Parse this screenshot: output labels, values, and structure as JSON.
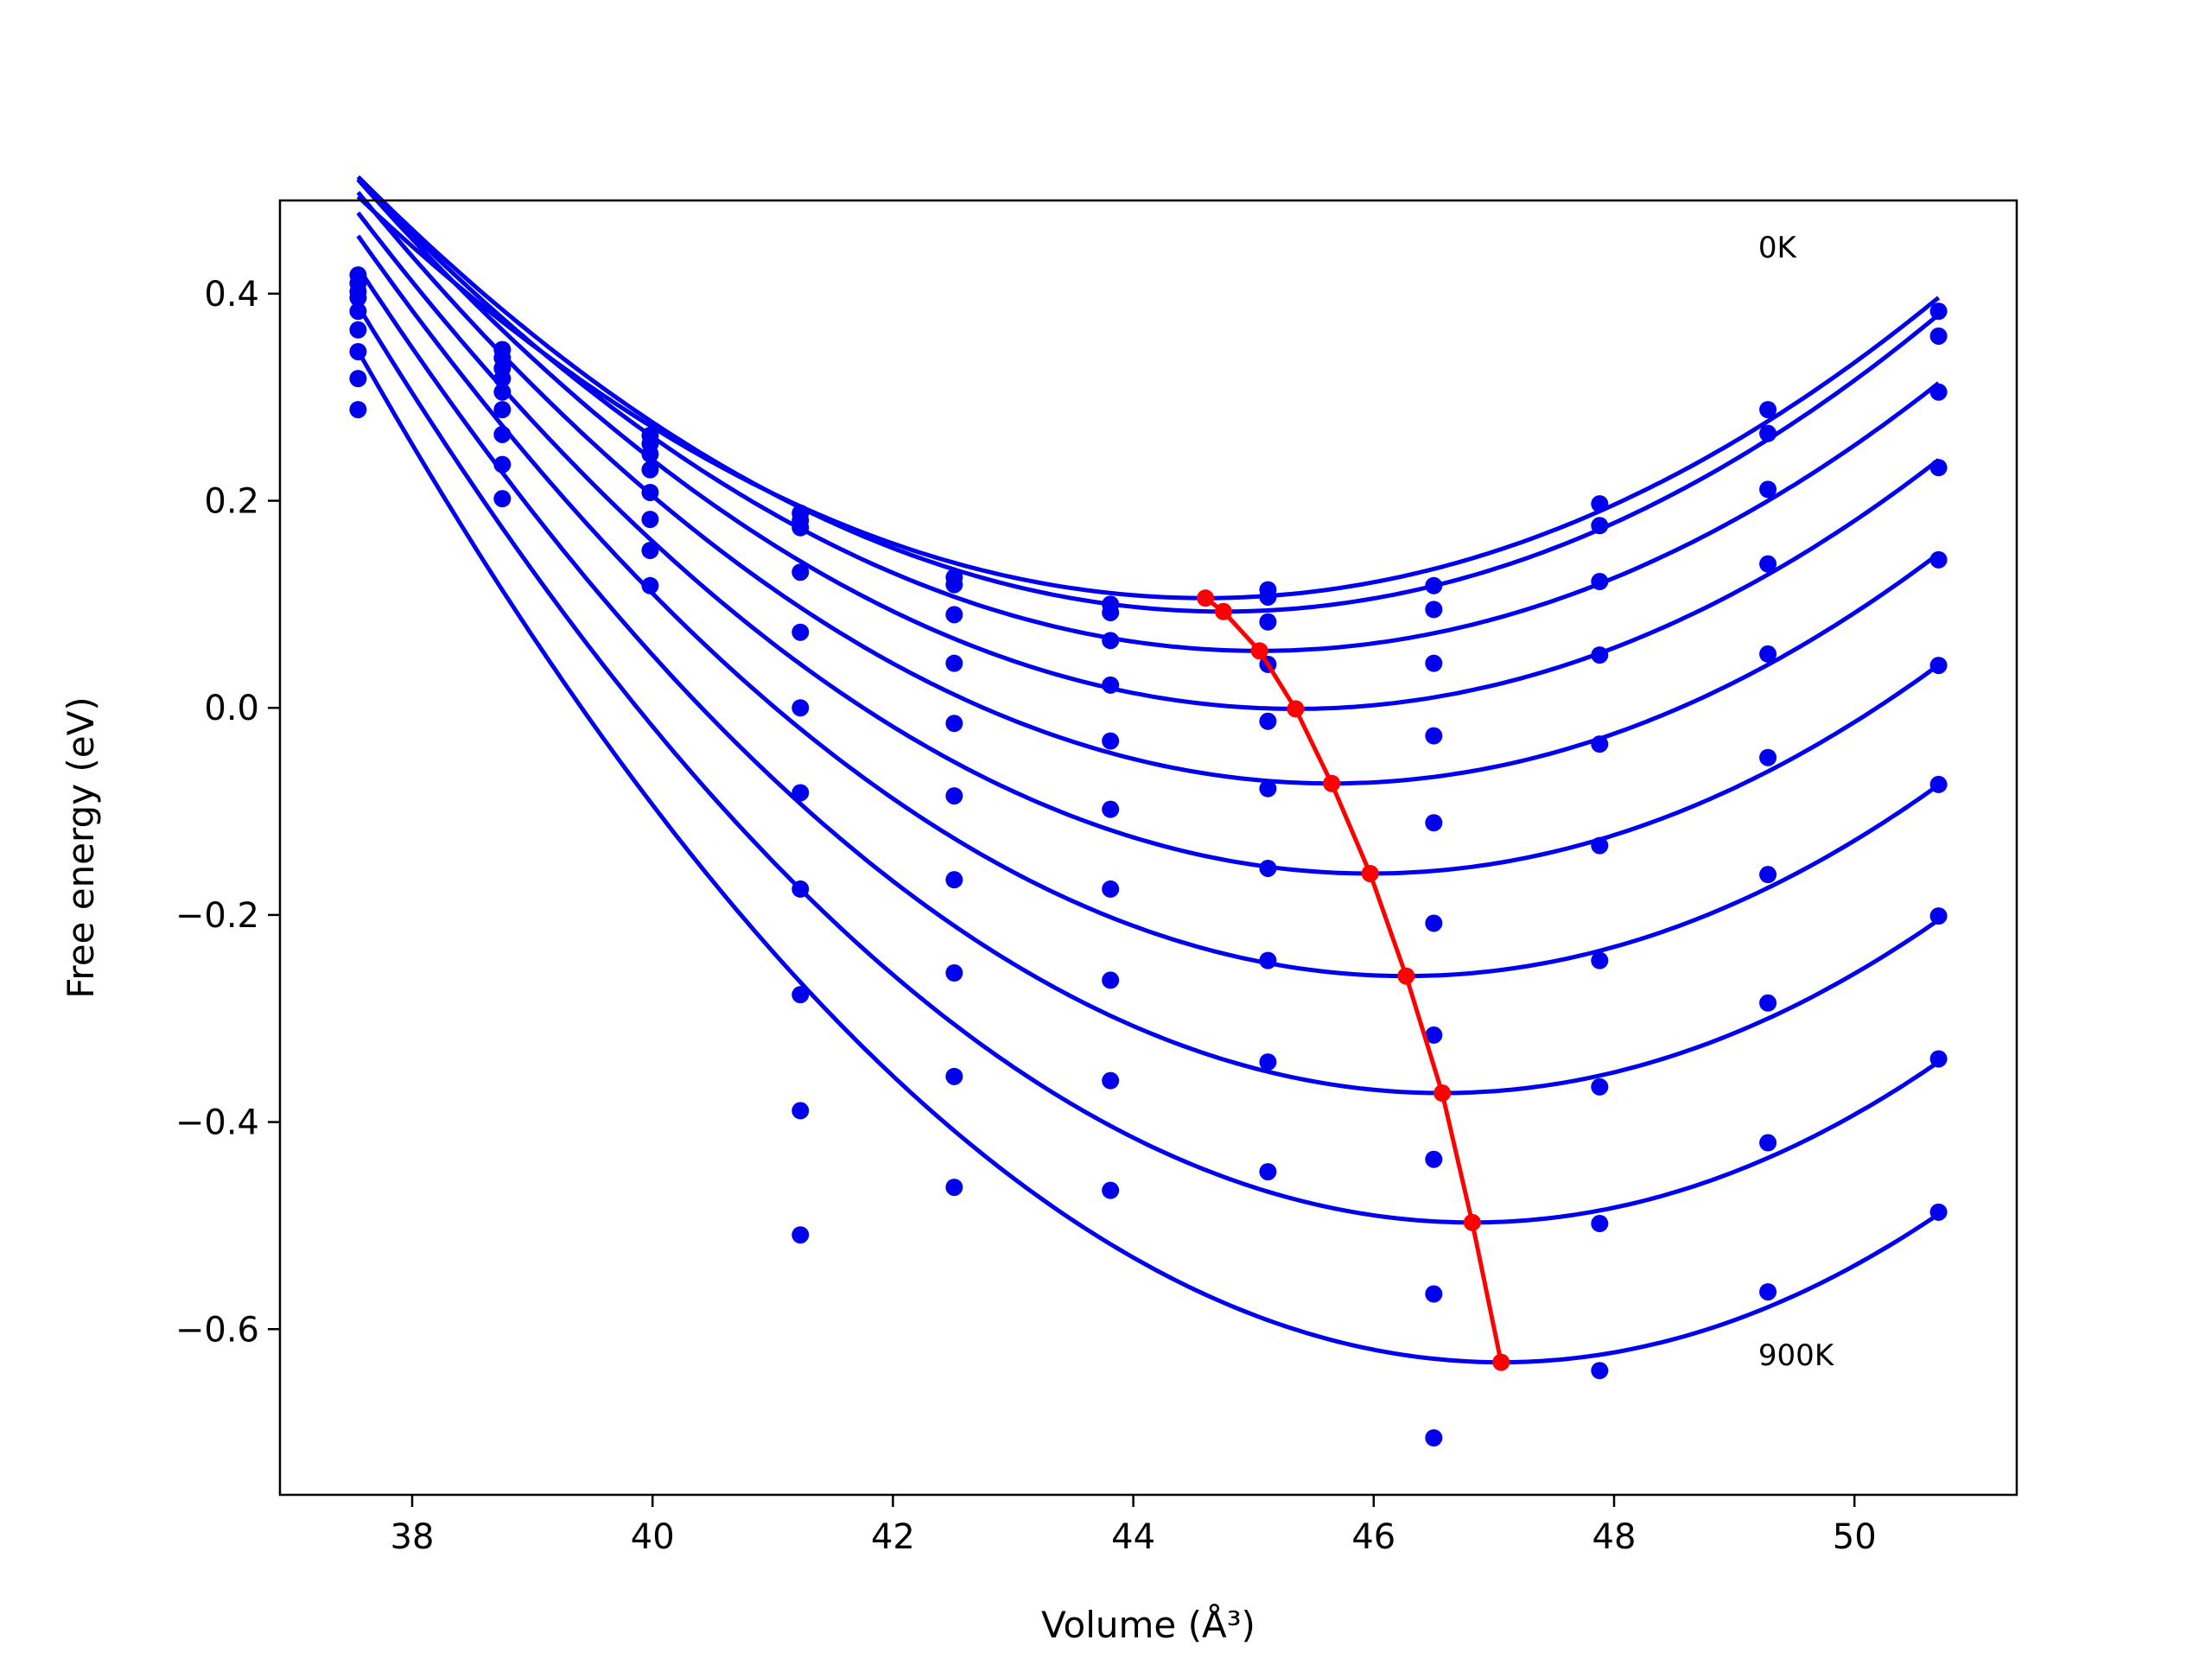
{
  "chart_data": {
    "type": "scatter",
    "title": "",
    "xlabel": "Volume (Å³)",
    "ylabel": "Free energy (eV)",
    "xlim": [
      36.9,
      51.35
    ],
    "ylim": [
      -0.76,
      0.49
    ],
    "xticks": [
      38,
      40,
      42,
      44,
      46,
      48,
      50
    ],
    "yticks": [
      0.4,
      0.2,
      0.0,
      -0.2,
      -0.4,
      -0.6
    ],
    "ytick_labels": [
      "0.4",
      "0.2",
      "0.0",
      "−0.2",
      "−0.4",
      "−0.6"
    ],
    "grid": false,
    "annotations": [
      {
        "text": "0K",
        "x": 49.2,
        "y": 0.435
      },
      {
        "text": "900K",
        "x": 49.2,
        "y": -0.635
      }
    ],
    "colors": {
      "points": "#0000ee",
      "fits": "#0000ee",
      "minima": "#ff0000"
    },
    "volumes": [
      37.55,
      38.75,
      39.98,
      41.23,
      42.51,
      43.81,
      45.12,
      46.5,
      47.88,
      49.28,
      50.7
    ],
    "points": [
      {
        "x": 37.55,
        "y": [
          0.418,
          0.41,
          0.402,
          0.396,
          0.383,
          0.365,
          0.344,
          0.318,
          0.288
        ]
      },
      {
        "x": 38.75,
        "y": [
          0.346,
          0.338,
          0.328,
          0.318,
          0.305,
          0.288,
          0.264,
          0.235,
          0.202
        ]
      },
      {
        "x": 39.98,
        "y": [
          0.263,
          0.255,
          0.245,
          0.23,
          0.208,
          0.182,
          0.152,
          0.118
        ]
      },
      {
        "x": 41.23,
        "y": [
          0.188,
          0.181,
          0.174,
          0.131,
          0.073,
          0.0,
          -0.082,
          -0.175,
          -0.277,
          -0.389,
          -0.509
        ]
      },
      {
        "x": 42.51,
        "y": [
          0.126,
          0.119,
          0.09,
          0.043,
          -0.015,
          -0.085,
          -0.166,
          -0.256,
          -0.356,
          -0.463
        ]
      },
      {
        "x": 43.81,
        "y": [
          0.1,
          0.092,
          0.065,
          0.022,
          -0.032,
          -0.098,
          -0.175,
          -0.263,
          -0.36,
          -0.466
        ]
      },
      {
        "x": 45.12,
        "y": [
          0.114,
          0.107,
          0.083,
          0.042,
          -0.013,
          -0.078,
          -0.155,
          -0.244,
          -0.342,
          -0.448
        ]
      },
      {
        "x": 46.5,
        "y": [
          0.118,
          0.095,
          0.043,
          -0.027,
          -0.111,
          -0.208,
          -0.316,
          -0.436,
          -0.566,
          -0.705
        ]
      },
      {
        "x": 47.88,
        "y": [
          0.197,
          0.176,
          0.122,
          0.051,
          -0.035,
          -0.133,
          -0.244,
          -0.366,
          -0.498,
          -0.64
        ]
      },
      {
        "x": 49.28,
        "y": [
          0.288,
          0.265,
          0.211,
          0.139,
          0.052,
          -0.048,
          -0.161,
          -0.285,
          -0.42,
          -0.564
        ]
      },
      {
        "x": 50.7,
        "y": [
          0.383,
          0.359,
          0.305,
          0.232,
          0.143,
          0.041,
          -0.074,
          -0.201,
          -0.339,
          -0.487
        ]
      }
    ],
    "fits": [
      {
        "min_x": 44.6,
        "min_y": 0.106,
        "curvature": 0.0078
      },
      {
        "min_x": 44.75,
        "min_y": 0.093,
        "curvature": 0.0081
      },
      {
        "min_x": 45.05,
        "min_y": 0.055,
        "curvature": 0.0081
      },
      {
        "min_x": 45.35,
        "min_y": -0.001,
        "curvature": 0.0084
      },
      {
        "min_x": 45.65,
        "min_y": -0.073,
        "curvature": 0.0087
      },
      {
        "min_x": 45.97,
        "min_y": -0.16,
        "curvature": 0.009
      },
      {
        "min_x": 46.27,
        "min_y": -0.259,
        "curvature": 0.0094
      },
      {
        "min_x": 46.57,
        "min_y": -0.372,
        "curvature": 0.0098
      },
      {
        "min_x": 46.82,
        "min_y": -0.497,
        "curvature": 0.0103
      },
      {
        "min_x": 47.06,
        "min_y": -0.632,
        "curvature": 0.0108
      }
    ],
    "fit_x_range": [
      37.55,
      50.7
    ],
    "minima_line": {
      "x": [
        44.6,
        44.75,
        45.05,
        45.35,
        45.65,
        45.97,
        46.27,
        46.57,
        46.82,
        47.06
      ],
      "y": [
        0.106,
        0.093,
        0.055,
        -0.001,
        -0.073,
        -0.16,
        -0.259,
        -0.372,
        -0.497,
        -0.632
      ]
    }
  }
}
